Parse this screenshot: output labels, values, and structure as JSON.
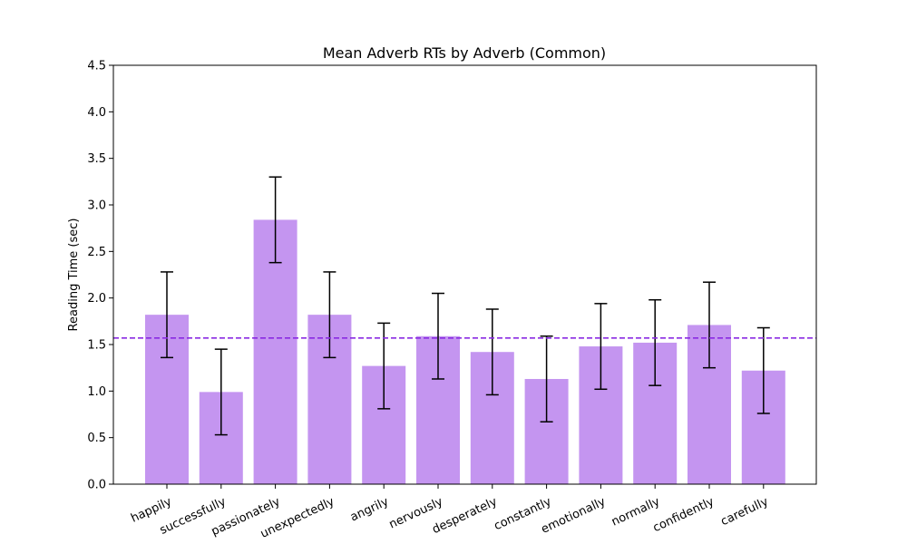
{
  "chart_data": {
    "type": "bar",
    "title": "Mean Adverb RTs by Adverb (Common)",
    "xlabel": "",
    "ylabel": "Reading Time (sec)",
    "ylim": [
      0,
      4.5
    ],
    "yticks": [
      "0.0",
      "0.5",
      "1.0",
      "1.5",
      "2.0",
      "2.5",
      "3.0",
      "3.5",
      "4.0",
      "4.5"
    ],
    "categories": [
      "happily",
      "successfully",
      "passionately",
      "unexpectedly",
      "angrily",
      "nervously",
      "desperately",
      "constantly",
      "emotionally",
      "normally",
      "confidently",
      "carefully"
    ],
    "values": [
      1.82,
      0.99,
      2.84,
      1.82,
      1.27,
      1.59,
      1.42,
      1.13,
      1.48,
      1.52,
      1.71,
      1.22
    ],
    "errors": [
      0.46,
      0.46,
      0.46,
      0.46,
      0.46,
      0.46,
      0.46,
      0.46,
      0.46,
      0.46,
      0.46,
      0.46
    ],
    "reference_line": 1.57,
    "grid": false,
    "colors": {
      "bar": "#c495f0",
      "error": "#000000",
      "reference": "#8a2be2"
    }
  }
}
